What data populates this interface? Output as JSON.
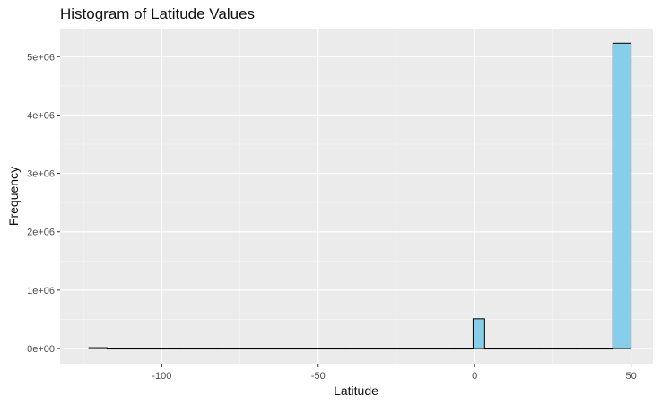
{
  "chart_data": {
    "type": "bar",
    "title": "Histogram of Latitude Values",
    "xlabel": "Latitude",
    "ylabel": "Frequency",
    "x_ticks": [
      -100,
      -50,
      0,
      50
    ],
    "x_tick_labels": [
      "-100",
      "-50",
      "0",
      "50"
    ],
    "y_ticks": [
      0,
      1000000,
      2000000,
      3000000,
      4000000,
      5000000
    ],
    "y_tick_labels": [
      "0e+00",
      "1e+06",
      "2e+06",
      "3e+06",
      "4e+06",
      "5e+06"
    ],
    "xlim": [
      -132.5,
      57
    ],
    "ylim": [
      -260000,
      5480000
    ],
    "bin_width": 5.85,
    "bins": [
      {
        "x0": -123.3,
        "x1": -117.5,
        "count": 15000
      },
      {
        "x0": -117.5,
        "x1": -111.6,
        "count": 0
      },
      {
        "x0": -111.6,
        "x1": -105.8,
        "count": 0
      },
      {
        "x0": -105.8,
        "x1": -99.9,
        "count": 0
      },
      {
        "x0": -99.9,
        "x1": -94.1,
        "count": 0
      },
      {
        "x0": -94.1,
        "x1": -88.2,
        "count": 0
      },
      {
        "x0": -88.2,
        "x1": -82.4,
        "count": 0
      },
      {
        "x0": -82.4,
        "x1": -76.5,
        "count": 0
      },
      {
        "x0": -76.5,
        "x1": -70.7,
        "count": 0
      },
      {
        "x0": -70.7,
        "x1": -64.8,
        "count": 0
      },
      {
        "x0": -64.8,
        "x1": -59.0,
        "count": 0
      },
      {
        "x0": -59.0,
        "x1": -53.1,
        "count": 0
      },
      {
        "x0": -53.1,
        "x1": -47.3,
        "count": 0
      },
      {
        "x0": -47.3,
        "x1": -41.4,
        "count": 0
      },
      {
        "x0": -41.4,
        "x1": -35.6,
        "count": 0
      },
      {
        "x0": -35.6,
        "x1": -29.7,
        "count": 0
      },
      {
        "x0": -29.7,
        "x1": -23.9,
        "count": 0
      },
      {
        "x0": -23.9,
        "x1": -18.0,
        "count": 0
      },
      {
        "x0": -18.0,
        "x1": -12.2,
        "count": 0
      },
      {
        "x0": -12.2,
        "x1": -6.3,
        "count": 0
      },
      {
        "x0": -6.3,
        "x1": -0.5,
        "count": 0
      },
      {
        "x0": -0.5,
        "x1": 3.2,
        "count": 510000
      },
      {
        "x0": 3.2,
        "x1": 9.1,
        "count": 0
      },
      {
        "x0": 9.1,
        "x1": 14.9,
        "count": 0
      },
      {
        "x0": 14.9,
        "x1": 20.8,
        "count": 0
      },
      {
        "x0": 20.8,
        "x1": 26.6,
        "count": 0
      },
      {
        "x0": 26.6,
        "x1": 32.5,
        "count": 0
      },
      {
        "x0": 32.5,
        "x1": 38.3,
        "count": 0
      },
      {
        "x0": 38.3,
        "x1": 44.2,
        "count": 0
      },
      {
        "x0": 44.2,
        "x1": 50.0,
        "count": 5230000
      }
    ],
    "bar_fill": "#87ceeb",
    "bar_stroke": "#000000",
    "panel_background": "#ebebeb",
    "grid": true,
    "legend": "none"
  }
}
